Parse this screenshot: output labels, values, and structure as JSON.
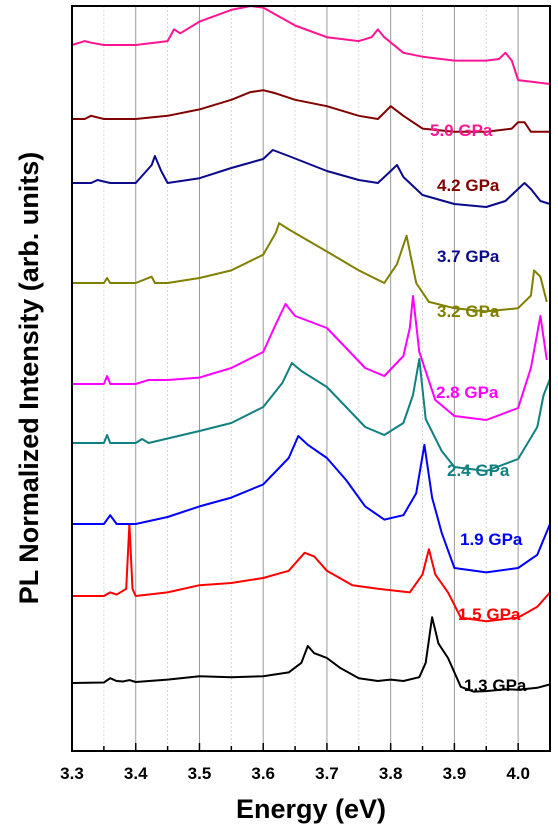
{
  "chart_data": {
    "type": "line",
    "xlabel": "Energy (eV)",
    "ylabel": "PL Normalized Intensity (arb. units)",
    "xlim": [
      3.3,
      4.05
    ],
    "x_ticks": [
      "3.3",
      "3.4",
      "3.5",
      "3.6",
      "3.7",
      "3.8",
      "3.9",
      "4.0"
    ],
    "x_minor_step": 0.05,
    "y_ticks_shown": false,
    "grid": "vertical",
    "legend": "inline labels at right",
    "series": [
      {
        "name": "1.3 GPa",
        "color": "#000000",
        "points": [
          [
            3.3,
            -0.02
          ],
          [
            3.35,
            -0.01
          ],
          [
            3.36,
            0.08
          ],
          [
            3.37,
            0.02
          ],
          [
            3.38,
            0.01
          ],
          [
            3.39,
            0.04
          ],
          [
            3.4,
            0.0
          ],
          [
            3.45,
            0.05
          ],
          [
            3.5,
            0.12
          ],
          [
            3.55,
            0.1
          ],
          [
            3.6,
            0.12
          ],
          [
            3.64,
            0.2
          ],
          [
            3.66,
            0.4
          ],
          [
            3.67,
            0.75
          ],
          [
            3.68,
            0.6
          ],
          [
            3.69,
            0.55
          ],
          [
            3.7,
            0.5
          ],
          [
            3.72,
            0.3
          ],
          [
            3.75,
            0.08
          ],
          [
            3.78,
            0.02
          ],
          [
            3.8,
            0.05
          ],
          [
            3.82,
            0.02
          ],
          [
            3.845,
            0.1
          ],
          [
            3.855,
            0.4
          ],
          [
            3.865,
            1.35
          ],
          [
            3.875,
            0.8
          ],
          [
            3.89,
            0.5
          ],
          [
            3.91,
            -0.1
          ],
          [
            3.93,
            -0.2
          ],
          [
            3.95,
            -0.19
          ],
          [
            3.98,
            -0.15
          ],
          [
            4.0,
            -0.16
          ],
          [
            4.03,
            -0.12
          ],
          [
            4.05,
            -0.05
          ]
        ]
      },
      {
        "name": "1.5 GPa",
        "color": "#ff0000",
        "points": [
          [
            3.3,
            0.0
          ],
          [
            3.35,
            0.0
          ],
          [
            3.36,
            0.05
          ],
          [
            3.37,
            0.02
          ],
          [
            3.385,
            0.1
          ],
          [
            3.39,
            1.0
          ],
          [
            3.395,
            0.1
          ],
          [
            3.4,
            0.0
          ],
          [
            3.45,
            0.05
          ],
          [
            3.5,
            0.15
          ],
          [
            3.55,
            0.18
          ],
          [
            3.6,
            0.25
          ],
          [
            3.64,
            0.35
          ],
          [
            3.665,
            0.6
          ],
          [
            3.68,
            0.55
          ],
          [
            3.7,
            0.35
          ],
          [
            3.74,
            0.15
          ],
          [
            3.78,
            0.1
          ],
          [
            3.83,
            0.05
          ],
          [
            3.85,
            0.3
          ],
          [
            3.86,
            0.65
          ],
          [
            3.87,
            0.3
          ],
          [
            3.89,
            0.05
          ],
          [
            3.91,
            -0.3
          ],
          [
            3.95,
            -0.35
          ],
          [
            4.0,
            -0.3
          ],
          [
            4.03,
            -0.15
          ],
          [
            4.05,
            0.05
          ]
        ]
      },
      {
        "name": "1.9 GPa",
        "color": "#0000ff",
        "points": [
          [
            3.3,
            0.0
          ],
          [
            3.35,
            0.0
          ],
          [
            3.36,
            0.1
          ],
          [
            3.37,
            0.0
          ],
          [
            3.4,
            0.0
          ],
          [
            3.45,
            0.08
          ],
          [
            3.5,
            0.2
          ],
          [
            3.55,
            0.3
          ],
          [
            3.6,
            0.45
          ],
          [
            3.64,
            0.75
          ],
          [
            3.655,
            1.0
          ],
          [
            3.67,
            0.9
          ],
          [
            3.7,
            0.75
          ],
          [
            3.73,
            0.5
          ],
          [
            3.76,
            0.2
          ],
          [
            3.79,
            0.05
          ],
          [
            3.82,
            0.1
          ],
          [
            3.84,
            0.35
          ],
          [
            3.853,
            0.9
          ],
          [
            3.865,
            0.3
          ],
          [
            3.88,
            -0.1
          ],
          [
            3.9,
            -0.5
          ],
          [
            3.95,
            -0.55
          ],
          [
            4.0,
            -0.5
          ],
          [
            4.03,
            -0.35
          ],
          [
            4.05,
            0.0
          ]
        ]
      },
      {
        "name": "2.4 GPa",
        "color": "#118080",
        "points": [
          [
            3.3,
            0.0
          ],
          [
            3.35,
            0.0
          ],
          [
            3.355,
            0.1
          ],
          [
            3.36,
            0.0
          ],
          [
            3.4,
            0.0
          ],
          [
            3.41,
            0.05
          ],
          [
            3.42,
            0.0
          ],
          [
            3.5,
            0.15
          ],
          [
            3.55,
            0.25
          ],
          [
            3.6,
            0.45
          ],
          [
            3.63,
            0.75
          ],
          [
            3.645,
            1.0
          ],
          [
            3.66,
            0.9
          ],
          [
            3.7,
            0.7
          ],
          [
            3.73,
            0.45
          ],
          [
            3.76,
            0.2
          ],
          [
            3.79,
            0.1
          ],
          [
            3.82,
            0.25
          ],
          [
            3.835,
            0.6
          ],
          [
            3.845,
            1.05
          ],
          [
            3.855,
            0.3
          ],
          [
            3.88,
            -0.1
          ],
          [
            3.9,
            -0.3
          ],
          [
            3.95,
            -0.35
          ],
          [
            4.0,
            -0.2
          ],
          [
            4.03,
            0.2
          ],
          [
            4.04,
            0.6
          ],
          [
            4.05,
            0.8
          ]
        ]
      },
      {
        "name": "2.8 GPa",
        "color": "#ff00ff",
        "points": [
          [
            3.3,
            0.0
          ],
          [
            3.35,
            0.0
          ],
          [
            3.355,
            0.1
          ],
          [
            3.36,
            0.0
          ],
          [
            3.4,
            0.0
          ],
          [
            3.42,
            0.05
          ],
          [
            3.45,
            0.05
          ],
          [
            3.5,
            0.08
          ],
          [
            3.55,
            0.2
          ],
          [
            3.6,
            0.4
          ],
          [
            3.62,
            0.75
          ],
          [
            3.635,
            1.0
          ],
          [
            3.65,
            0.85
          ],
          [
            3.7,
            0.7
          ],
          [
            3.73,
            0.45
          ],
          [
            3.76,
            0.2
          ],
          [
            3.79,
            0.1
          ],
          [
            3.82,
            0.35
          ],
          [
            3.83,
            0.7
          ],
          [
            3.835,
            1.1
          ],
          [
            3.845,
            0.4
          ],
          [
            3.87,
            -0.2
          ],
          [
            3.9,
            -0.4
          ],
          [
            3.95,
            -0.45
          ],
          [
            4.0,
            -0.3
          ],
          [
            4.02,
            0.2
          ],
          [
            4.035,
            0.85
          ],
          [
            4.045,
            0.3
          ]
        ]
      },
      {
        "name": "3.2 GPa",
        "color": "#808000",
        "points": [
          [
            3.3,
            0.0
          ],
          [
            3.35,
            0.0
          ],
          [
            3.355,
            0.08
          ],
          [
            3.36,
            0.0
          ],
          [
            3.4,
            0.0
          ],
          [
            3.425,
            0.1
          ],
          [
            3.43,
            0.0
          ],
          [
            3.45,
            0.0
          ],
          [
            3.5,
            0.08
          ],
          [
            3.55,
            0.2
          ],
          [
            3.6,
            0.45
          ],
          [
            3.62,
            0.8
          ],
          [
            3.625,
            0.95
          ],
          [
            3.64,
            0.85
          ],
          [
            3.7,
            0.5
          ],
          [
            3.75,
            0.2
          ],
          [
            3.79,
            0.0
          ],
          [
            3.81,
            0.3
          ],
          [
            3.82,
            0.6
          ],
          [
            3.825,
            0.75
          ],
          [
            3.84,
            0.0
          ],
          [
            3.86,
            -0.3
          ],
          [
            3.9,
            -0.4
          ],
          [
            3.95,
            -0.45
          ],
          [
            4.0,
            -0.4
          ],
          [
            4.02,
            -0.2
          ],
          [
            4.025,
            0.2
          ],
          [
            4.035,
            0.1
          ],
          [
            4.045,
            -0.3
          ]
        ]
      },
      {
        "name": "3.7 GPa",
        "color": "#0a0a8a",
        "points": [
          [
            3.3,
            0.0
          ],
          [
            3.33,
            0.0
          ],
          [
            3.34,
            0.05
          ],
          [
            3.36,
            0.0
          ],
          [
            3.4,
            0.0
          ],
          [
            3.425,
            0.3
          ],
          [
            3.43,
            0.45
          ],
          [
            3.44,
            0.2
          ],
          [
            3.45,
            0.0
          ],
          [
            3.5,
            0.08
          ],
          [
            3.55,
            0.25
          ],
          [
            3.6,
            0.4
          ],
          [
            3.615,
            0.55
          ],
          [
            3.64,
            0.45
          ],
          [
            3.7,
            0.2
          ],
          [
            3.75,
            0.05
          ],
          [
            3.78,
            0.0
          ],
          [
            3.8,
            0.2
          ],
          [
            3.81,
            0.3
          ],
          [
            3.82,
            0.1
          ],
          [
            3.85,
            -0.2
          ],
          [
            3.9,
            -0.35
          ],
          [
            3.95,
            -0.4
          ],
          [
            3.98,
            -0.3
          ],
          [
            4.0,
            -0.1
          ],
          [
            4.01,
            0.0
          ],
          [
            4.02,
            -0.1
          ],
          [
            4.035,
            -0.3
          ],
          [
            4.05,
            -0.35
          ]
        ]
      },
      {
        "name": "4.2 GPa",
        "color": "#800000",
        "points": [
          [
            3.3,
            0.0
          ],
          [
            3.32,
            0.0
          ],
          [
            3.33,
            0.05
          ],
          [
            3.35,
            0.0
          ],
          [
            3.4,
            0.0
          ],
          [
            3.45,
            0.05
          ],
          [
            3.5,
            0.15
          ],
          [
            3.55,
            0.3
          ],
          [
            3.58,
            0.42
          ],
          [
            3.6,
            0.45
          ],
          [
            3.62,
            0.4
          ],
          [
            3.65,
            0.3
          ],
          [
            3.7,
            0.2
          ],
          [
            3.75,
            0.05
          ],
          [
            3.78,
            0.0
          ],
          [
            3.795,
            0.15
          ],
          [
            3.8,
            0.2
          ],
          [
            3.82,
            0.05
          ],
          [
            3.85,
            -0.15
          ],
          [
            3.9,
            -0.2
          ],
          [
            3.95,
            -0.2
          ],
          [
            3.99,
            -0.15
          ],
          [
            4.0,
            -0.05
          ],
          [
            4.01,
            -0.05
          ],
          [
            4.02,
            -0.2
          ],
          [
            4.05,
            -0.2
          ]
        ]
      },
      {
        "name": "5.0 GPa",
        "color": "#ff1493",
        "points": [
          [
            3.3,
            0.0
          ],
          [
            3.32,
            0.05
          ],
          [
            3.33,
            0.03
          ],
          [
            3.35,
            0.0
          ],
          [
            3.4,
            0.0
          ],
          [
            3.45,
            0.05
          ],
          [
            3.46,
            0.2
          ],
          [
            3.47,
            0.15
          ],
          [
            3.5,
            0.3
          ],
          [
            3.55,
            0.45
          ],
          [
            3.58,
            0.5
          ],
          [
            3.6,
            0.48
          ],
          [
            3.65,
            0.25
          ],
          [
            3.7,
            0.1
          ],
          [
            3.75,
            0.05
          ],
          [
            3.77,
            0.1
          ],
          [
            3.78,
            0.2
          ],
          [
            3.79,
            0.1
          ],
          [
            3.82,
            -0.1
          ],
          [
            3.85,
            -0.15
          ],
          [
            3.9,
            -0.2
          ],
          [
            3.95,
            -0.2
          ],
          [
            3.97,
            -0.18
          ],
          [
            3.98,
            -0.1
          ],
          [
            3.99,
            -0.2
          ],
          [
            4.0,
            -0.45
          ],
          [
            4.05,
            -0.5
          ]
        ]
      }
    ]
  }
}
